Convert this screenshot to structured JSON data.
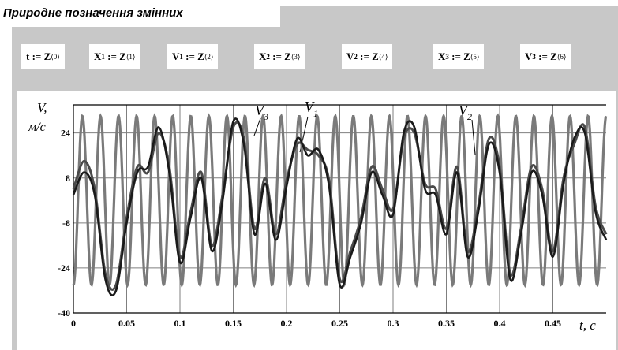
{
  "title": "Природне позначення змінних",
  "definitions": [
    {
      "lhs": "t",
      "sub": "",
      "rhs": "Z",
      "sup": "⟨0⟩"
    },
    {
      "lhs": "X",
      "sub": "1",
      "rhs": "Z",
      "sup": "⟨1⟩"
    },
    {
      "lhs": "V",
      "sub": "1",
      "rhs": "Z",
      "sup": "⟨2⟩"
    },
    {
      "lhs": "X",
      "sub": "2",
      "rhs": "Z",
      "sup": "⟨3⟩"
    },
    {
      "lhs": "V",
      "sub": "2",
      "rhs": "Z",
      "sup": "⟨4⟩"
    },
    {
      "lhs": "X",
      "sub": "3",
      "rhs": "Z",
      "sup": "⟨5⟩"
    },
    {
      "lhs": "V",
      "sub": "3",
      "rhs": "Z",
      "sup": "⟨6⟩"
    }
  ],
  "assign_op": ":=",
  "colors": {
    "panel": "#c8c8c8",
    "grid": "#7f7f7f",
    "v1": "#1a1a1a",
    "v2": "#4a4a4a",
    "v3": "#7a7a7a"
  },
  "chart_data": {
    "type": "line",
    "title": "",
    "ylabel_line1": "V,",
    "ylabel_line2": "м/с",
    "xlabel": "t, с",
    "xlim": [
      0,
      0.5
    ],
    "ylim": [
      -40,
      34
    ],
    "xticks": [
      0,
      0.05,
      0.1,
      0.15,
      0.2,
      0.25,
      0.3,
      0.35,
      0.4,
      0.45
    ],
    "xtick_labels": [
      "0",
      "0.05",
      "0.1",
      "0.15",
      "0.2",
      "0.25",
      "0.3",
      "0.35",
      "0.4",
      "0.45"
    ],
    "yticks": [
      -40,
      -24,
      -8,
      8,
      24
    ],
    "ytick_labels": [
      "-40",
      "-24",
      "-8",
      "8",
      "24"
    ],
    "grid": true,
    "legend": "curve labels placed on the plot",
    "series": [
      {
        "name": "V",
        "label_sub": "1",
        "x": [
          0,
          0.01,
          0.02,
          0.03,
          0.04,
          0.05,
          0.06,
          0.07,
          0.08,
          0.09,
          0.1,
          0.11,
          0.12,
          0.13,
          0.14,
          0.15,
          0.16,
          0.17,
          0.18,
          0.19,
          0.2,
          0.21,
          0.22,
          0.23,
          0.24,
          0.25,
          0.26,
          0.27,
          0.28,
          0.29,
          0.3,
          0.31,
          0.32,
          0.33,
          0.34,
          0.35,
          0.36,
          0.37,
          0.38,
          0.39,
          0.4,
          0.41,
          0.42,
          0.43,
          0.44,
          0.45,
          0.46,
          0.47,
          0.48,
          0.49,
          0.5
        ],
        "y": [
          2,
          10,
          2,
          -28,
          -32,
          -8,
          10,
          12,
          26,
          10,
          -22,
          -6,
          8,
          -18,
          0,
          28,
          20,
          -12,
          6,
          -14,
          5,
          22,
          16,
          18,
          5,
          -30,
          -20,
          -8,
          10,
          2,
          -5,
          24,
          26,
          4,
          2,
          -12,
          10,
          -20,
          -4,
          20,
          10,
          -28,
          -12,
          10,
          2,
          -20,
          6,
          22,
          24,
          -4,
          -14
        ]
      },
      {
        "name": "V",
        "label_sub": "2",
        "x": [
          0,
          0.01,
          0.02,
          0.03,
          0.04,
          0.05,
          0.06,
          0.07,
          0.08,
          0.09,
          0.1,
          0.11,
          0.12,
          0.13,
          0.14,
          0.15,
          0.16,
          0.17,
          0.18,
          0.19,
          0.2,
          0.21,
          0.22,
          0.23,
          0.24,
          0.25,
          0.26,
          0.27,
          0.28,
          0.29,
          0.3,
          0.31,
          0.32,
          0.33,
          0.34,
          0.35,
          0.36,
          0.37,
          0.38,
          0.39,
          0.4,
          0.41,
          0.42,
          0.43,
          0.44,
          0.45,
          0.46,
          0.47,
          0.48,
          0.49,
          0.5
        ],
        "y": [
          4,
          14,
          4,
          -26,
          -30,
          -6,
          12,
          10,
          24,
          12,
          -20,
          -4,
          10,
          -16,
          2,
          26,
          22,
          -10,
          8,
          -12,
          7,
          20,
          18,
          16,
          7,
          -28,
          -18,
          -6,
          12,
          4,
          -3,
          22,
          24,
          6,
          4,
          -10,
          12,
          -18,
          -2,
          22,
          12,
          -26,
          -10,
          12,
          4,
          -18,
          8,
          20,
          26,
          -2,
          -12
        ]
      },
      {
        "name": "V",
        "label_sub": "3",
        "amplitude": 30,
        "frequency_hz": 59,
        "x_start": 0,
        "x_end": 0.5
      }
    ]
  }
}
